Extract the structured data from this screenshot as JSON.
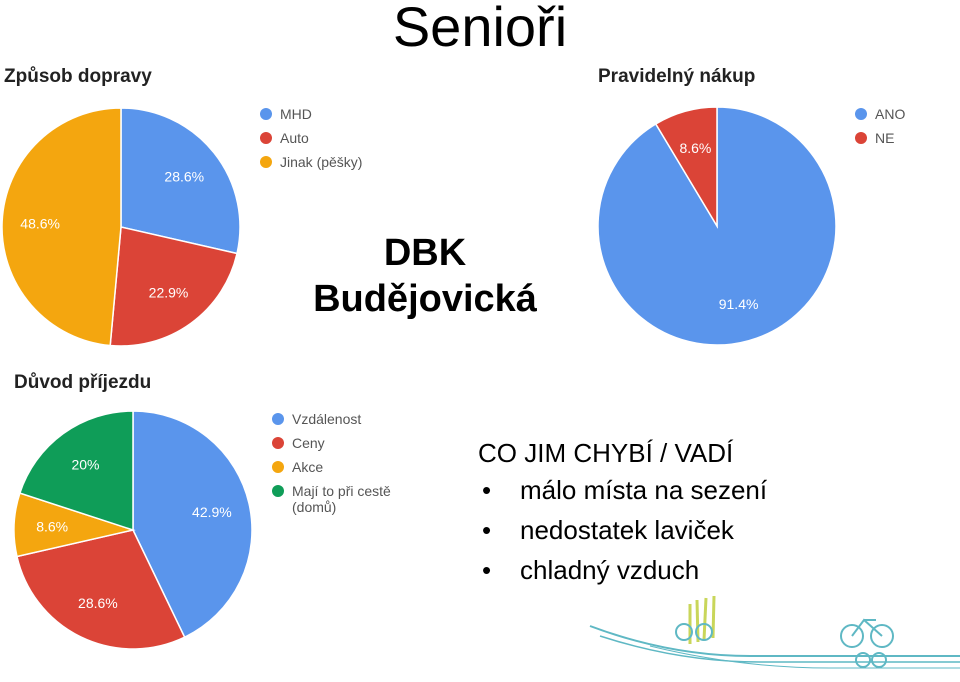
{
  "page": {
    "title": "Senioři",
    "center_title_line1": "DBK",
    "center_title_line2": "Budějovická"
  },
  "notes": {
    "heading": "CO JIM CHYBÍ / VADÍ",
    "items": [
      "málo místa na sezení",
      "nedostatek laviček",
      "chladný vzduch"
    ]
  },
  "chart_data": [
    {
      "type": "pie",
      "title": "Způsob dopravy",
      "categories": [
        "MHD",
        "Auto",
        "Jinak (pěšky)"
      ],
      "values": [
        28.6,
        22.9,
        48.6
      ],
      "labels": [
        "28.6%",
        "22.9%",
        "48.6%"
      ],
      "colors": [
        "#5a95ec",
        "#db4437",
        "#f4a60f"
      ],
      "legend": "right"
    },
    {
      "type": "pie",
      "title": "Pravidelný nákup",
      "categories": [
        "ANO",
        "NE"
      ],
      "values": [
        91.4,
        8.6
      ],
      "labels": [
        "91.4%",
        "8.6%"
      ],
      "colors": [
        "#5a95ec",
        "#db4437"
      ],
      "legend": "right"
    },
    {
      "type": "pie",
      "title": "Důvod příjezdu",
      "categories": [
        "Vzdálenost",
        "Ceny",
        "Akce",
        "Mají to při cestě (domů)"
      ],
      "values": [
        42.9,
        28.6,
        8.6,
        20
      ],
      "labels": [
        "42.9%",
        "28.6%",
        "8.6%",
        "20%"
      ],
      "colors": [
        "#5a95ec",
        "#db4437",
        "#f4a60f",
        "#0f9d58"
      ],
      "legend": "right"
    }
  ],
  "colors": {
    "logo": "#5fb8c4",
    "logo_accent": "#c9d65a"
  }
}
